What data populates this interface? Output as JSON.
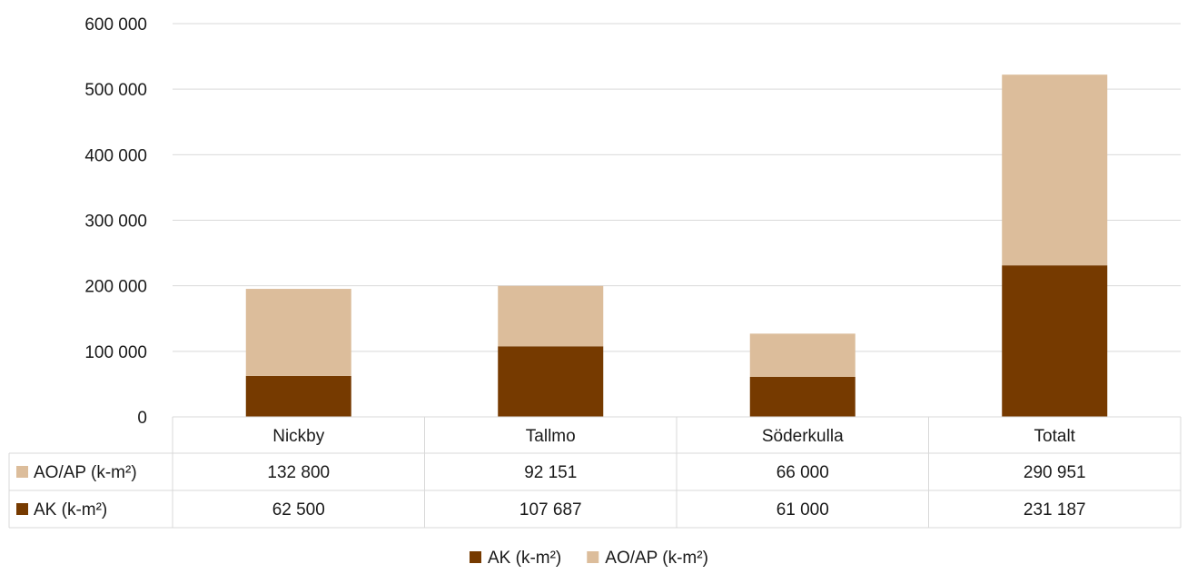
{
  "chart_data": {
    "type": "bar",
    "stacked": true,
    "categories": [
      "Nickby",
      "Tallmo",
      "Söderkulla",
      "Totalt"
    ],
    "series": [
      {
        "name": "AK (k-m²)",
        "values": [
          62500,
          107687,
          61000,
          231187
        ],
        "formatted": [
          "62 500",
          "107 687",
          "61 000",
          "231 187"
        ],
        "color": "#763a00"
      },
      {
        "name": "AO/AP (k-m²)",
        "values": [
          132800,
          92151,
          66000,
          290951
        ],
        "formatted": [
          "132 800",
          "92 151",
          "66 000",
          "290 951"
        ],
        "color": "#dcbd9b"
      }
    ],
    "yticks": [
      "0",
      "100 000",
      "200 000",
      "300 000",
      "400 000",
      "500 000",
      "600 000"
    ],
    "ylim": [
      0,
      600000
    ],
    "grid": true,
    "data_table": true,
    "legend": {
      "placement": "bottom",
      "order": [
        "AK (k-m²)",
        "AO/AP (k-m²)"
      ]
    },
    "gridline_color": "#d9d9d9"
  }
}
